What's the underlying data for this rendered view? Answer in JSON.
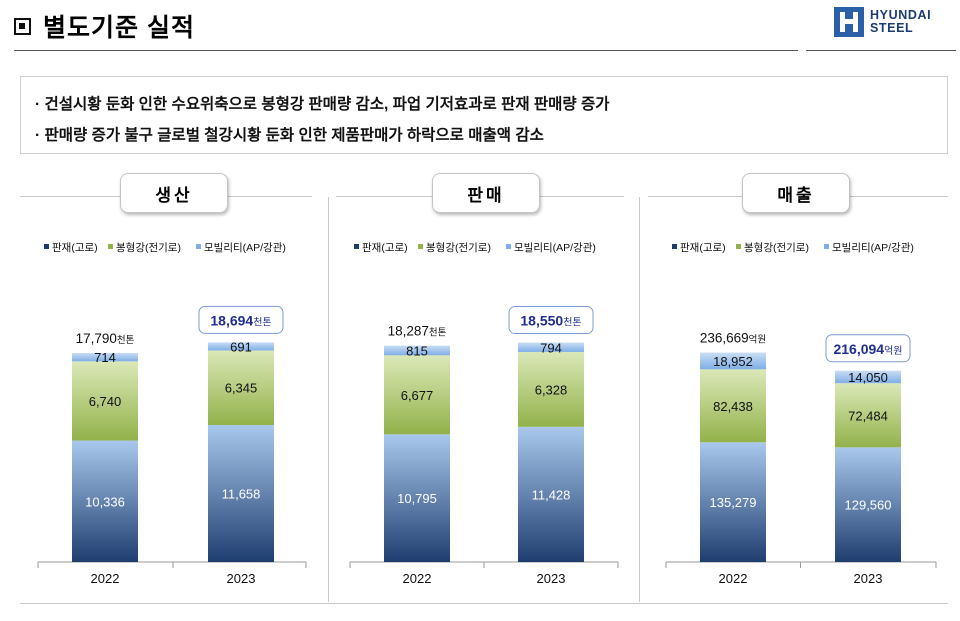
{
  "header": {
    "title": "별도기준 실적",
    "logo_lines": [
      "HYUNDAI",
      "STEEL"
    ]
  },
  "summary": [
    "· 건설시황 둔화 인한 수요위축으로 봉형강 판매량 감소, 파업 기저효과로 판재 판매량 증가",
    "· 판매량 증가 불구 글로벌 철강시황 둔화 인한 제품판매가 하락으로 매출액 감소"
  ],
  "colors": {
    "판재": "#1f3e70",
    "봉형강": "#92b24a",
    "모빌리티": "#7faee6",
    "highlight_text": "#1f2f8f",
    "highlight_border": "#7e9dd0"
  },
  "chart_data": [
    {
      "type": "bar",
      "stacked": true,
      "title": "생산",
      "categories": [
        "2022",
        "2023"
      ],
      "series": [
        {
          "name": "판재(고로)",
          "values": [
            10336,
            11658
          ]
        },
        {
          "name": "봉형강(전기로)",
          "values": [
            6740,
            6345
          ]
        },
        {
          "name": "모빌리티(AP/강관)",
          "values": [
            714,
            691
          ]
        }
      ],
      "totals": [
        {
          "value": "17,790",
          "unit": "천톤",
          "highlight": false
        },
        {
          "value": "18,694",
          "unit": "천톤",
          "highlight": true
        }
      ]
    },
    {
      "type": "bar",
      "stacked": true,
      "title": "판매",
      "categories": [
        "2022",
        "2023"
      ],
      "series": [
        {
          "name": "판재(고로)",
          "values": [
            10795,
            11428
          ]
        },
        {
          "name": "봉형강(전기로)",
          "values": [
            6677,
            6328
          ]
        },
        {
          "name": "모빌리티(AP/강관)",
          "values": [
            815,
            794
          ]
        }
      ],
      "totals": [
        {
          "value": "18,287",
          "unit": "천톤",
          "highlight": false
        },
        {
          "value": "18,550",
          "unit": "천톤",
          "highlight": true
        }
      ]
    },
    {
      "type": "bar",
      "stacked": true,
      "title": "매출",
      "categories": [
        "2022",
        "2023"
      ],
      "series": [
        {
          "name": "판재(고로)",
          "values": [
            135279,
            129560
          ]
        },
        {
          "name": "봉형강(전기로)",
          "values": [
            82438,
            72484
          ]
        },
        {
          "name": "모빌리티(AP/강관)",
          "values": [
            18952,
            14050
          ]
        }
      ],
      "totals": [
        {
          "value": "236,669",
          "unit": "억원",
          "highlight": false
        },
        {
          "value": "216,094",
          "unit": "억원",
          "highlight": true
        }
      ]
    }
  ]
}
